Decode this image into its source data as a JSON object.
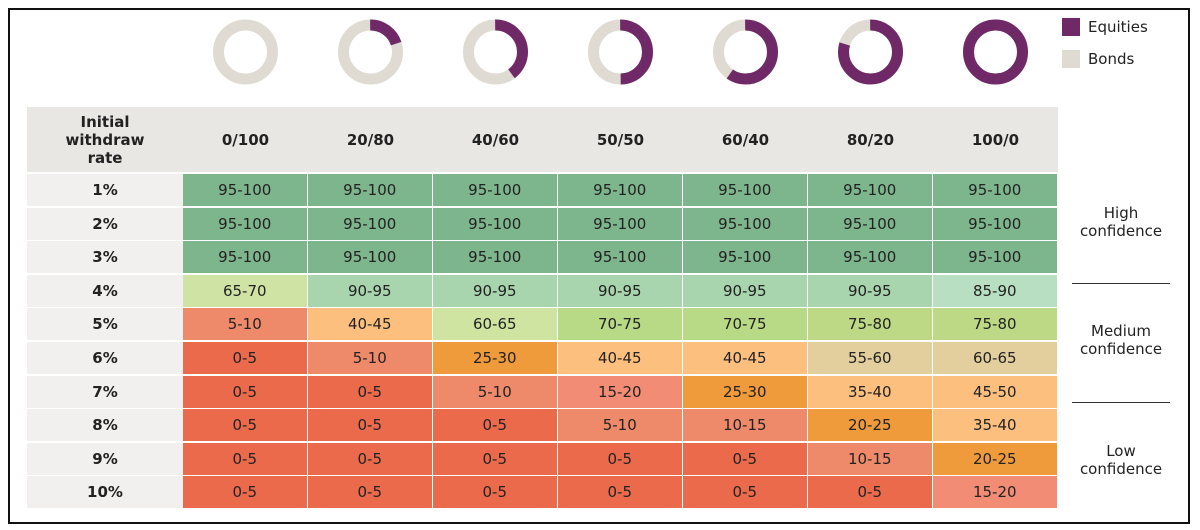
{
  "legend": [
    {
      "label": "Equities",
      "color": "#6f2967"
    },
    {
      "label": "Bonds",
      "color": "#dfdbd3"
    }
  ],
  "equity_share": [
    0,
    20,
    40,
    50,
    60,
    80,
    100
  ],
  "header": {
    "row_label": "Initial withdraw rate",
    "columns": [
      "0/100",
      "20/80",
      "40/60",
      "50/50",
      "60/40",
      "80/20",
      "100/0"
    ]
  },
  "rows": [
    {
      "label": "1%",
      "cells": [
        "95-100",
        "95-100",
        "95-100",
        "95-100",
        "95-100",
        "95-100",
        "95-100"
      ],
      "colors": [
        "#7db58c",
        "#7db58c",
        "#7db58c",
        "#7db58c",
        "#7db58c",
        "#7db58c",
        "#7db58c"
      ]
    },
    {
      "label": "2%",
      "cells": [
        "95-100",
        "95-100",
        "95-100",
        "95-100",
        "95-100",
        "95-100",
        "95-100"
      ],
      "colors": [
        "#7db58c",
        "#7db58c",
        "#7db58c",
        "#7db58c",
        "#7db58c",
        "#7db58c",
        "#7db58c"
      ]
    },
    {
      "label": "3%",
      "cells": [
        "95-100",
        "95-100",
        "95-100",
        "95-100",
        "95-100",
        "95-100",
        "95-100"
      ],
      "colors": [
        "#7db58c",
        "#7db58c",
        "#7db58c",
        "#7db58c",
        "#7db58c",
        "#7db58c",
        "#7db58c"
      ]
    },
    {
      "label": "4%",
      "cells": [
        "65-70",
        "90-95",
        "90-95",
        "90-95",
        "90-95",
        "90-95",
        "85-90"
      ],
      "colors": [
        "#cfe3a5",
        "#a8d5ae",
        "#a8d5ae",
        "#a8d5ae",
        "#a8d5ae",
        "#a8d5ae",
        "#b9dfc3"
      ]
    },
    {
      "label": "5%",
      "cells": [
        "5-10",
        "40-45",
        "60-65",
        "70-75",
        "70-75",
        "75-80",
        "75-80"
      ],
      "colors": [
        "#ee8a69",
        "#fdbf7e",
        "#cfe4a1",
        "#b8d985",
        "#b8d985",
        "#bdd985",
        "#bdd985"
      ]
    },
    {
      "label": "6%",
      "cells": [
        "0-5",
        "5-10",
        "25-30",
        "40-45",
        "40-45",
        "55-60",
        "60-65"
      ],
      "colors": [
        "#ea6a4b",
        "#ee8a69",
        "#f09b3b",
        "#fdbf7e",
        "#fdbf7e",
        "#e3cf9d",
        "#e3cf9d"
      ]
    },
    {
      "label": "7%",
      "cells": [
        "0-5",
        "0-5",
        "5-10",
        "15-20",
        "25-30",
        "35-40",
        "45-50"
      ],
      "colors": [
        "#ea6a4b",
        "#ea6a4b",
        "#ee8a69",
        "#f38c75",
        "#f09b3b",
        "#fdbf7e",
        "#fdbf7e"
      ]
    },
    {
      "label": "8%",
      "cells": [
        "0-5",
        "0-5",
        "0-5",
        "5-10",
        "10-15",
        "20-25",
        "35-40"
      ],
      "colors": [
        "#ea6a4b",
        "#ea6a4b",
        "#ea6a4b",
        "#ee8a69",
        "#ee8a69",
        "#f09b3b",
        "#fdbf7e"
      ]
    },
    {
      "label": "9%",
      "cells": [
        "0-5",
        "0-5",
        "0-5",
        "0-5",
        "0-5",
        "10-15",
        "20-25"
      ],
      "colors": [
        "#ea6a4b",
        "#ea6a4b",
        "#ea6a4b",
        "#ea6a4b",
        "#ea6a4b",
        "#ee8a69",
        "#f09b3b"
      ]
    },
    {
      "label": "10%",
      "cells": [
        "0-5",
        "0-5",
        "0-5",
        "0-5",
        "0-5",
        "0-5",
        "15-20"
      ],
      "colors": [
        "#ea6a4b",
        "#ea6a4b",
        "#ea6a4b",
        "#ea6a4b",
        "#ea6a4b",
        "#ea6a4b",
        "#f38c75"
      ]
    }
  ],
  "confidence": [
    "High confidence",
    "Medium confidence",
    "Low confidence"
  ]
}
